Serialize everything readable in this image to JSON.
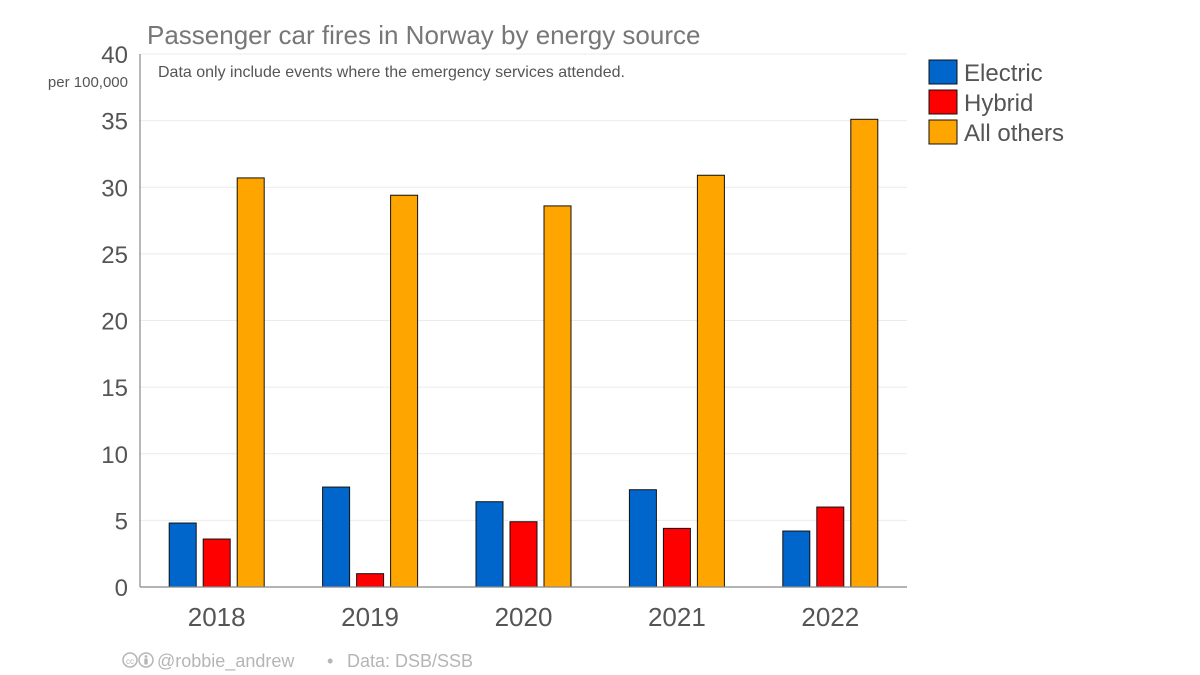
{
  "chart_data": {
    "type": "bar",
    "title": "Passenger car fires in Norway by energy source",
    "subtitle": "Data only include events where the emergency services attended.",
    "ylabel": "per 100,000",
    "xlabel": "",
    "categories": [
      "2018",
      "2019",
      "2020",
      "2021",
      "2022"
    ],
    "ylim": [
      0,
      40
    ],
    "yticks": [
      0,
      5,
      10,
      15,
      20,
      25,
      30,
      35,
      40
    ],
    "grid": true,
    "legend_position": "top-right",
    "series": [
      {
        "name": "Electric",
        "color": "#0066cc",
        "values": [
          4.8,
          7.5,
          6.4,
          7.3,
          4.2
        ]
      },
      {
        "name": "Hybrid",
        "color": "#ff0000",
        "values": [
          3.6,
          1.0,
          4.9,
          4.4,
          6.0
        ]
      },
      {
        "name": "All others",
        "color": "#ffa500",
        "values": [
          30.7,
          29.4,
          28.6,
          30.9,
          35.1
        ]
      }
    ]
  },
  "credit": {
    "license_icon": "cc-by-icon",
    "author": "@robbie_andrew",
    "separator": "•",
    "source": "Data: DSB/SSB"
  }
}
